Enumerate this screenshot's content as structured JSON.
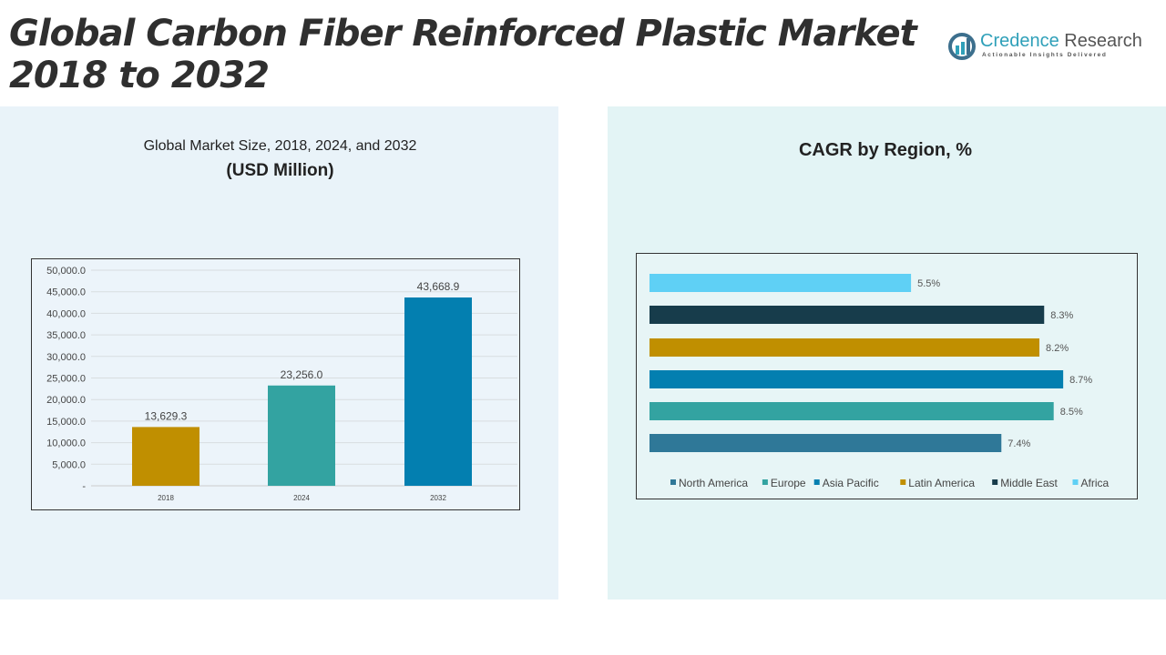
{
  "title": [
    "Global Carbon Fiber Reinforced Plastic Market",
    "2018 to 2032"
  ],
  "logo": {
    "name1": "Credence",
    "name2": " Research",
    "tagline": "Actionable Insights Delivered"
  },
  "chart_data": [
    {
      "type": "bar",
      "title": "Global Market Size, 2018, 2024, and 2032",
      "subtitle": "(USD Million)",
      "categories": [
        "2018",
        "2024",
        "2032"
      ],
      "values": [
        13629.3,
        23256.0,
        43668.9
      ],
      "value_labels": [
        "13,629.3",
        "23,256.0",
        "43,668.9"
      ],
      "colors": [
        "#c08f00",
        "#33a3a1",
        "#037fb0"
      ],
      "ylim": [
        0,
        50000
      ],
      "yticks": [
        "-",
        "5,000.0",
        "10,000.0",
        "15,000.0",
        "20,000.0",
        "25,000.0",
        "30,000.0",
        "35,000.0",
        "40,000.0",
        "45,000.0",
        "50,000.0"
      ],
      "grid": true
    },
    {
      "type": "bar",
      "orientation": "horizontal",
      "title": "CAGR by Region, %",
      "categories": [
        "North America",
        "Europe",
        "Asia Pacific",
        "Latin America",
        "Middle East",
        "Africa"
      ],
      "values": [
        7.4,
        8.5,
        8.7,
        8.2,
        8.3,
        5.5
      ],
      "value_labels": [
        "7.4%",
        "8.5%",
        "8.7%",
        "8.2%",
        "8.3%",
        "5.5%"
      ],
      "colors": [
        "#2f7898",
        "#33a3a1",
        "#037fb0",
        "#c08f00",
        "#173c4b",
        "#5fd0f5"
      ],
      "legend": "bottom"
    }
  ]
}
